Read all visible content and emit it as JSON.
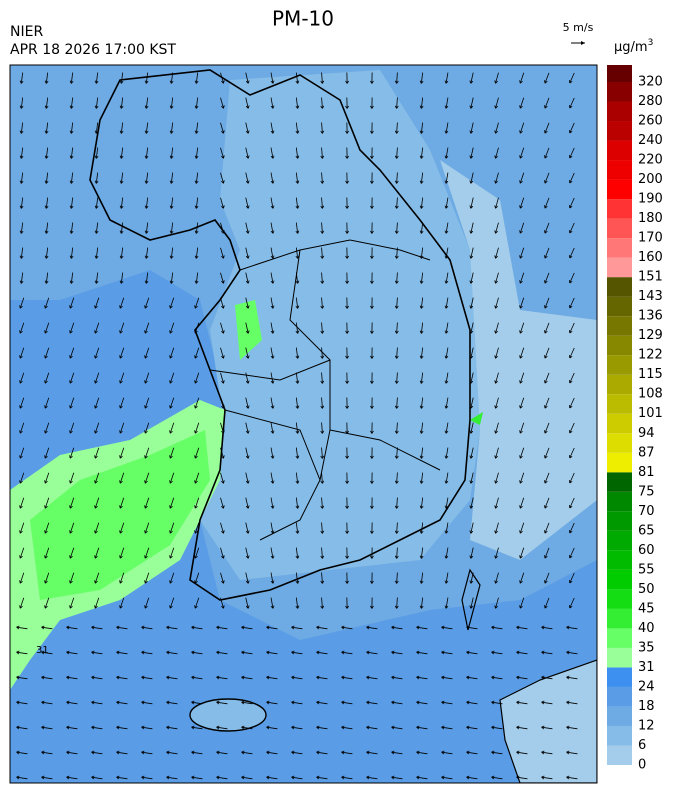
{
  "header": {
    "title": "PM-10",
    "agency": "NIER",
    "timestamp": "APR 18 2026 17:00 KST"
  },
  "wind_scale": {
    "label": "5 m/s"
  },
  "colorbar": {
    "unit": "µg/m",
    "unit_exponent": "3",
    "levels": [
      0,
      6,
      12,
      18,
      24,
      31,
      35,
      40,
      45,
      50,
      55,
      60,
      65,
      70,
      75,
      81,
      87,
      94,
      101,
      108,
      115,
      122,
      129,
      136,
      143,
      151,
      160,
      170,
      180,
      190,
      200,
      220,
      240,
      260,
      280,
      320
    ],
    "colors": [
      "#a3cdea",
      "#86bde8",
      "#6eaae3",
      "#5a9de6",
      "#3d8ff0",
      "#99ff99",
      "#66ff66",
      "#33ee33",
      "#14dd14",
      "#00cc00",
      "#00bb00",
      "#00aa00",
      "#009900",
      "#008800",
      "#006600",
      "#eeee00",
      "#dddd00",
      "#cccc00",
      "#bbbb00",
      "#aaaa00",
      "#999900",
      "#888800",
      "#777700",
      "#666600",
      "#555500",
      "#ff9999",
      "#ff7777",
      "#ff5555",
      "#ff3333",
      "#ff0000",
      "#ee0000",
      "#dd0000",
      "#bb0000",
      "#aa0000",
      "#880000",
      "#660000"
    ]
  },
  "map": {
    "contour_labels": [
      "31"
    ]
  }
}
